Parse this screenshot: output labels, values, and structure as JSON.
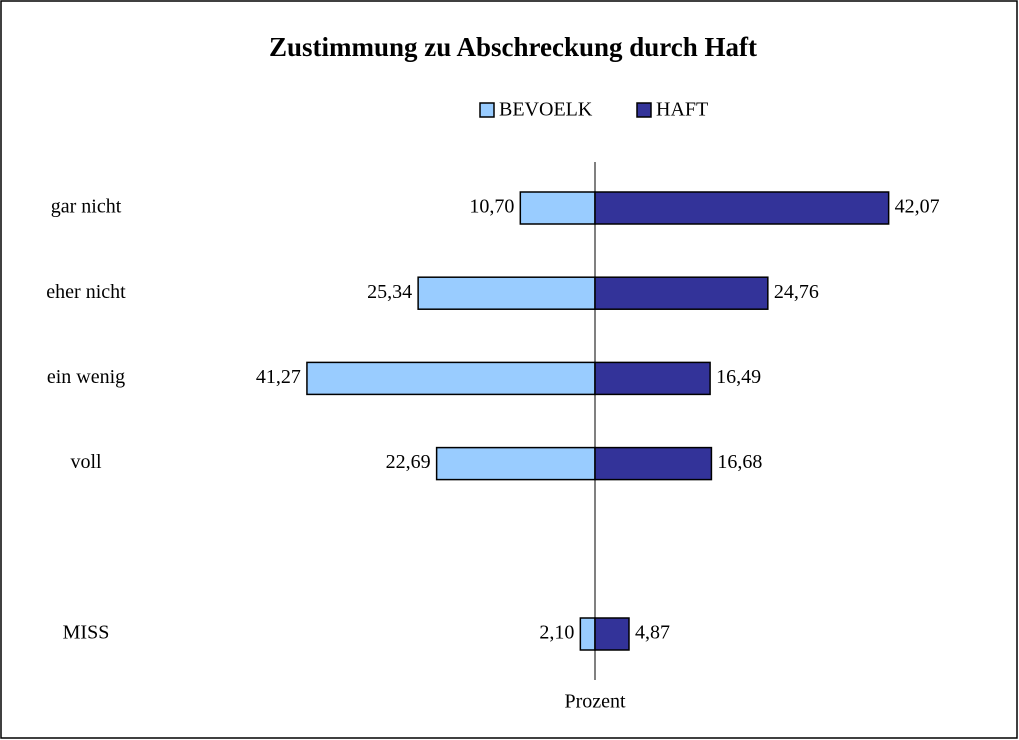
{
  "chart_data": {
    "type": "butterfly-bar",
    "title": "Zustimmung zu Abschreckung durch Haft",
    "categories": [
      "gar nicht",
      "eher nicht",
      "ein wenig",
      "voll",
      null,
      "MISS"
    ],
    "series": [
      {
        "name": "BEVOELK",
        "color": "#99ccff",
        "values": [
          10.7,
          25.34,
          41.27,
          22.69,
          null,
          2.1
        ],
        "value_labels": [
          "10,70",
          "25,34",
          "41,27",
          "22,69",
          null,
          "2,10"
        ]
      },
      {
        "name": "HAFT",
        "color": "#333399",
        "values": [
          42.07,
          24.76,
          16.49,
          16.68,
          null,
          4.87
        ],
        "value_labels": [
          "42,07",
          "24,76",
          "16,49",
          "16,68",
          null,
          "4,87"
        ]
      }
    ],
    "x_label": "Prozent"
  }
}
